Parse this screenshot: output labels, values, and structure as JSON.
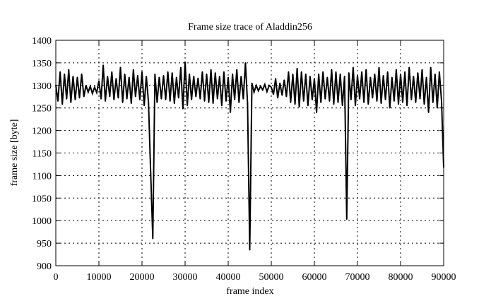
{
  "chart_data": {
    "type": "line",
    "title": "Frame size trace of Aladdin256",
    "xlabel": "frame index",
    "ylabel": "frame size [byte]",
    "xlim": [
      0,
      90000
    ],
    "ylim": [
      900,
      1400
    ],
    "xticks": [
      0,
      10000,
      20000,
      30000,
      40000,
      50000,
      60000,
      70000,
      80000,
      90000
    ],
    "yticks": [
      900,
      950,
      1000,
      1050,
      1100,
      1150,
      1200,
      1250,
      1300,
      1350,
      1400
    ],
    "grid": true,
    "line_color": "#000000",
    "series": [
      {
        "x": [
          0,
          500,
          1000,
          1500,
          2000,
          2500,
          3000,
          3500,
          4000,
          4500,
          5000,
          5500,
          6000,
          6500,
          7000,
          7500,
          8000,
          8500,
          9000,
          9500,
          10000,
          10500,
          11000,
          11500,
          12000,
          12500,
          13000,
          13500,
          14000,
          14500,
          15000,
          15500,
          16000,
          16500,
          17000,
          17500,
          18000,
          18500,
          19000,
          19500,
          20000,
          20500,
          21000,
          21500,
          22000,
          22500,
          23000,
          23500,
          24000,
          24500,
          25000,
          25500,
          26000,
          26500,
          27000,
          27500,
          28000,
          28500,
          29000,
          29500,
          30000,
          30500,
          31000,
          31500,
          32000,
          32500,
          33000,
          33500,
          34000,
          34500,
          35000,
          35500,
          36000,
          36500,
          37000,
          37500,
          38000,
          38500,
          39000,
          39500,
          40000,
          40500,
          41000,
          41500,
          42000,
          42500,
          43000,
          43500,
          44000,
          44500,
          45000,
          45500,
          46000,
          46500,
          47000,
          47500,
          48000,
          48500,
          49000,
          49500,
          50000,
          50500,
          51000,
          51500,
          52000,
          52500,
          53000,
          53500,
          54000,
          54500,
          55000,
          55500,
          56000,
          56500,
          57000,
          57500,
          58000,
          58500,
          59000,
          59500,
          60000,
          60500,
          61000,
          61500,
          62000,
          62500,
          63000,
          63500,
          64000,
          64500,
          65000,
          65500,
          66000,
          66500,
          67000,
          67500,
          68000,
          68500,
          69000,
          69500,
          70000,
          70500,
          71000,
          71500,
          72000,
          72500,
          73000,
          73500,
          74000,
          74500,
          75000,
          75500,
          76000,
          76500,
          77000,
          77500,
          78000,
          78500,
          79000,
          79500,
          80000,
          80500,
          81000,
          81500,
          82000,
          82500,
          83000,
          83500,
          84000,
          84500,
          85000,
          85500,
          86000,
          86500,
          87000,
          87500,
          88000,
          88500,
          89000,
          89500,
          90000
        ],
        "y": [
          1300,
          1265,
          1330,
          1258,
          1325,
          1270,
          1335,
          1262,
          1320,
          1268,
          1318,
          1272,
          1325,
          1275,
          1300,
          1285,
          1298,
          1282,
          1296,
          1284,
          1310,
          1270,
          1345,
          1265,
          1320,
          1275,
          1330,
          1268,
          1315,
          1272,
          1340,
          1262,
          1325,
          1270,
          1318,
          1260,
          1335,
          1275,
          1322,
          1268,
          1330,
          1255,
          1320,
          1262,
          1110,
          960,
          1325,
          1262,
          1318,
          1270,
          1322,
          1268,
          1330,
          1265,
          1328,
          1260,
          1318,
          1272,
          1340,
          1248,
          1352,
          1255,
          1325,
          1268,
          1320,
          1275,
          1316,
          1270,
          1330,
          1265,
          1325,
          1262,
          1335,
          1260,
          1328,
          1270,
          1320,
          1255,
          1330,
          1265,
          1318,
          1240,
          1325,
          1268,
          1335,
          1262,
          1320,
          1270,
          1350,
          1260,
          935,
          1305,
          1285,
          1300,
          1288,
          1298,
          1290,
          1302,
          1286,
          1300,
          1296,
          1280,
          1315,
          1272,
          1305,
          1278,
          1312,
          1275,
          1330,
          1262,
          1325,
          1258,
          1338,
          1252,
          1330,
          1265,
          1325,
          1255,
          1320,
          1268,
          1315,
          1240,
          1325,
          1262,
          1330,
          1270,
          1318,
          1265,
          1335,
          1258,
          1330,
          1262,
          1325,
          1255,
          1320,
          1003,
          1328,
          1268,
          1340,
          1255,
          1322,
          1270,
          1330,
          1262,
          1335,
          1258,
          1318,
          1272,
          1325,
          1265,
          1340,
          1260,
          1322,
          1268,
          1330,
          1250,
          1318,
          1265,
          1335,
          1258,
          1325,
          1262,
          1330,
          1255,
          1340,
          1268,
          1320,
          1262,
          1328,
          1270,
          1335,
          1258,
          1318,
          1240,
          1340,
          1262,
          1325,
          1250,
          1330,
          1265,
          1118
        ]
      }
    ]
  }
}
